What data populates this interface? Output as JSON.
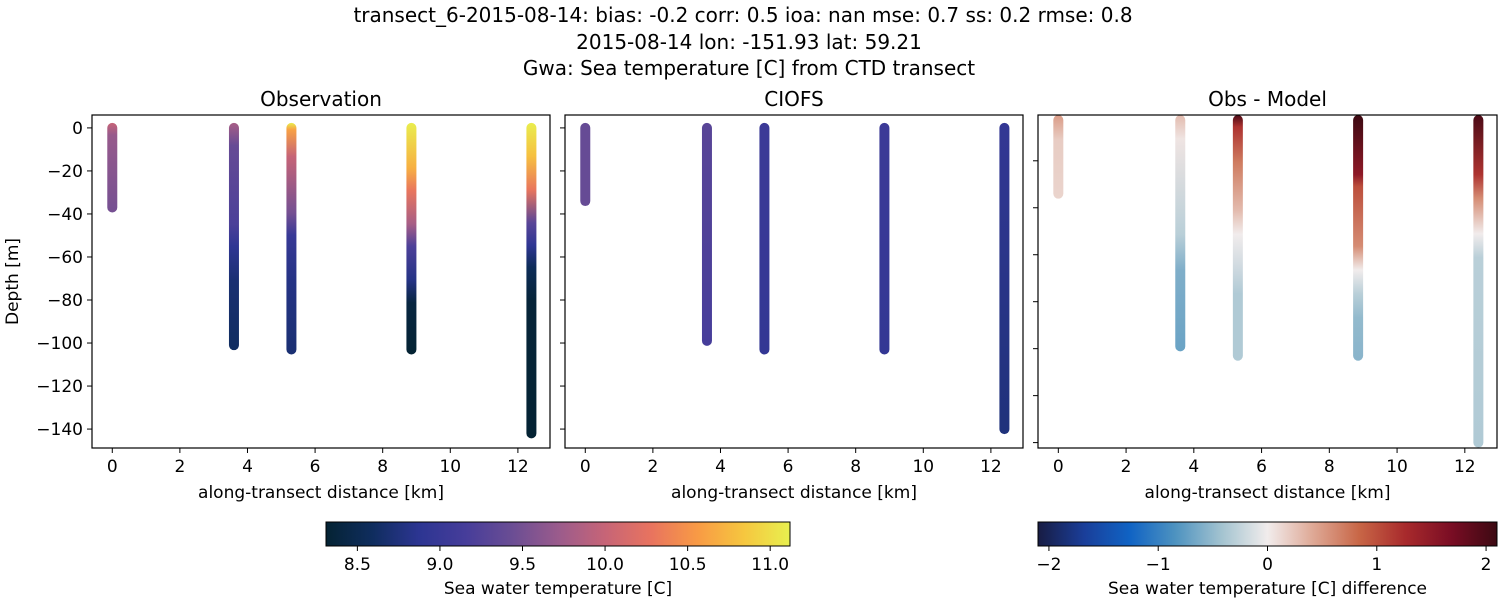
{
  "suptitle": [
    "transect_6-2015-08-14: bias: -0.2  corr: 0.5  ioa: nan  mse: 0.7  ss: 0.2  rmse: 0.8",
    "2015-08-14 lon: -151.93 lat: 59.21",
    "Gwa: Sea temperature [C] from CTD transect"
  ],
  "chart_data": [
    {
      "type": "scatter",
      "title": "Observation",
      "xlabel": "along-transect distance [km]",
      "ylabel": "Depth [m]",
      "xlim": [
        -0.6,
        12.95
      ],
      "ylim": [
        -148.8,
        6
      ],
      "xticks": [
        0,
        2,
        4,
        6,
        8,
        10,
        12
      ],
      "yticks": [
        0,
        -20,
        -40,
        -60,
        -80,
        -100,
        -120,
        -140
      ],
      "colormap": "thermal",
      "clim": [
        8.31,
        11.12
      ],
      "profiles": [
        {
          "x": 0,
          "points": [
            [
              0,
              10.0
            ],
            [
              5,
              9.7
            ],
            [
              37,
              9.5
            ]
          ]
        },
        {
          "x": 3.6,
          "points": [
            [
              0,
              9.8
            ],
            [
              10,
              9.4
            ],
            [
              45,
              9.2
            ],
            [
              55,
              8.9
            ],
            [
              70,
              8.7
            ],
            [
              101,
              8.6
            ]
          ]
        },
        {
          "x": 5.3,
          "points": [
            [
              0,
              11.1
            ],
            [
              3,
              10.6
            ],
            [
              15,
              10.0
            ],
            [
              40,
              9.5
            ],
            [
              50,
              9.0
            ],
            [
              70,
              8.8
            ],
            [
              103,
              8.7
            ]
          ]
        },
        {
          "x": 8.85,
          "points": [
            [
              0,
              11.1
            ],
            [
              20,
              10.7
            ],
            [
              30,
              10.3
            ],
            [
              45,
              9.8
            ],
            [
              55,
              9.2
            ],
            [
              70,
              8.8
            ],
            [
              80,
              8.4
            ],
            [
              103,
              8.3
            ]
          ]
        },
        {
          "x": 12.4,
          "points": [
            [
              0,
              11.1
            ],
            [
              15,
              10.8
            ],
            [
              30,
              10.3
            ],
            [
              45,
              9.3
            ],
            [
              55,
              8.9
            ],
            [
              65,
              8.55
            ],
            [
              80,
              8.35
            ],
            [
              142,
              8.3
            ]
          ]
        }
      ]
    },
    {
      "type": "scatter",
      "title": "CIOFS",
      "xlabel": "along-transect distance [km]",
      "xlim": [
        -0.6,
        12.95
      ],
      "ylim": [
        -148.8,
        6
      ],
      "xticks": [
        0,
        2,
        4,
        6,
        8,
        10,
        12
      ],
      "yticks": [
        0,
        -20,
        -40,
        -60,
        -80,
        -100,
        -120,
        -140
      ],
      "colormap": "thermal",
      "clim": [
        8.31,
        11.12
      ],
      "profiles": [
        {
          "x": 0,
          "points": [
            [
              0,
              9.4
            ],
            [
              34,
              9.4
            ]
          ]
        },
        {
          "x": 3.6,
          "points": [
            [
              0,
              9.3
            ],
            [
              99,
              9.15
            ]
          ]
        },
        {
          "x": 5.3,
          "points": [
            [
              0,
              9.05
            ],
            [
              103,
              8.95
            ]
          ]
        },
        {
          "x": 8.85,
          "points": [
            [
              0,
              9.05
            ],
            [
              103,
              8.95
            ]
          ]
        },
        {
          "x": 12.4,
          "points": [
            [
              0,
              8.95
            ],
            [
              140,
              8.75
            ]
          ]
        }
      ]
    },
    {
      "type": "scatter",
      "title": "Obs - Model",
      "xlabel": "along-transect distance [km]",
      "xlim": [
        -0.6,
        12.95
      ],
      "ylim": [
        -142.3,
        -0.5
      ],
      "xticks": [
        0,
        2,
        4,
        6,
        8,
        10,
        12
      ],
      "yticks": [
        -20,
        -40,
        -60,
        -80,
        -100,
        -120,
        -140
      ],
      "colormap": "balance",
      "clim": [
        -2.1,
        2.1
      ],
      "profiles": [
        {
          "x": 0,
          "points": [
            [
              0,
              0.5
            ],
            [
              10,
              0.2
            ],
            [
              34,
              0.15
            ]
          ]
        },
        {
          "x": 3.6,
          "points": [
            [
              0,
              0.3
            ],
            [
              10,
              0.05
            ],
            [
              50,
              -0.3
            ],
            [
              65,
              -0.6
            ],
            [
              99,
              -0.7
            ]
          ]
        },
        {
          "x": 5.3,
          "points": [
            [
              0,
              2.0
            ],
            [
              5,
              1.2
            ],
            [
              20,
              0.7
            ],
            [
              40,
              0.3
            ],
            [
              50,
              0
            ],
            [
              65,
              -0.2
            ],
            [
              75,
              -0.35
            ],
            [
              103,
              -0.35
            ]
          ]
        },
        {
          "x": 8.85,
          "points": [
            [
              0,
              2.1
            ],
            [
              25,
              1.5
            ],
            [
              30,
              1.0
            ],
            [
              55,
              0.6
            ],
            [
              65,
              0
            ],
            [
              75,
              -0.3
            ],
            [
              85,
              -0.5
            ],
            [
              103,
              -0.55
            ]
          ]
        },
        {
          "x": 12.4,
          "points": [
            [
              0,
              2.0
            ],
            [
              25,
              1.2
            ],
            [
              35,
              0.6
            ],
            [
              50,
              0
            ],
            [
              60,
              -0.3
            ],
            [
              140,
              -0.35
            ]
          ]
        }
      ]
    }
  ],
  "colorbars": [
    {
      "label": "Sea water temperature [C]",
      "ticks": [
        "8.5",
        "9.0",
        "9.5",
        "10.0",
        "10.5",
        "11.0"
      ],
      "tick_values": [
        8.5,
        9.0,
        9.5,
        10.0,
        10.5,
        11.0
      ],
      "range": [
        8.31,
        11.12
      ],
      "colormap": "thermal"
    },
    {
      "label": "Sea water temperature [C] difference",
      "ticks": [
        "−2",
        "−1",
        "0",
        "1",
        "2"
      ],
      "tick_values": [
        -2,
        -1,
        0,
        1,
        2
      ],
      "range": [
        -2.1,
        2.1
      ],
      "colormap": "balance"
    }
  ],
  "colormaps": {
    "thermal": [
      "#042333",
      "#0f2d5e",
      "#2c3592",
      "#463d9a",
      "#6a4d94",
      "#9a5b8c",
      "#c66477",
      "#e8735f",
      "#f89a45",
      "#f6c63f",
      "#e8f04f"
    ],
    "balance": [
      "#181c43",
      "#1a3e99",
      "#1063c4",
      "#4e93c0",
      "#a3c3d0",
      "#f1ecec",
      "#dea895",
      "#c86646",
      "#a82a2c",
      "#7a0d24",
      "#3c0912"
    ]
  }
}
